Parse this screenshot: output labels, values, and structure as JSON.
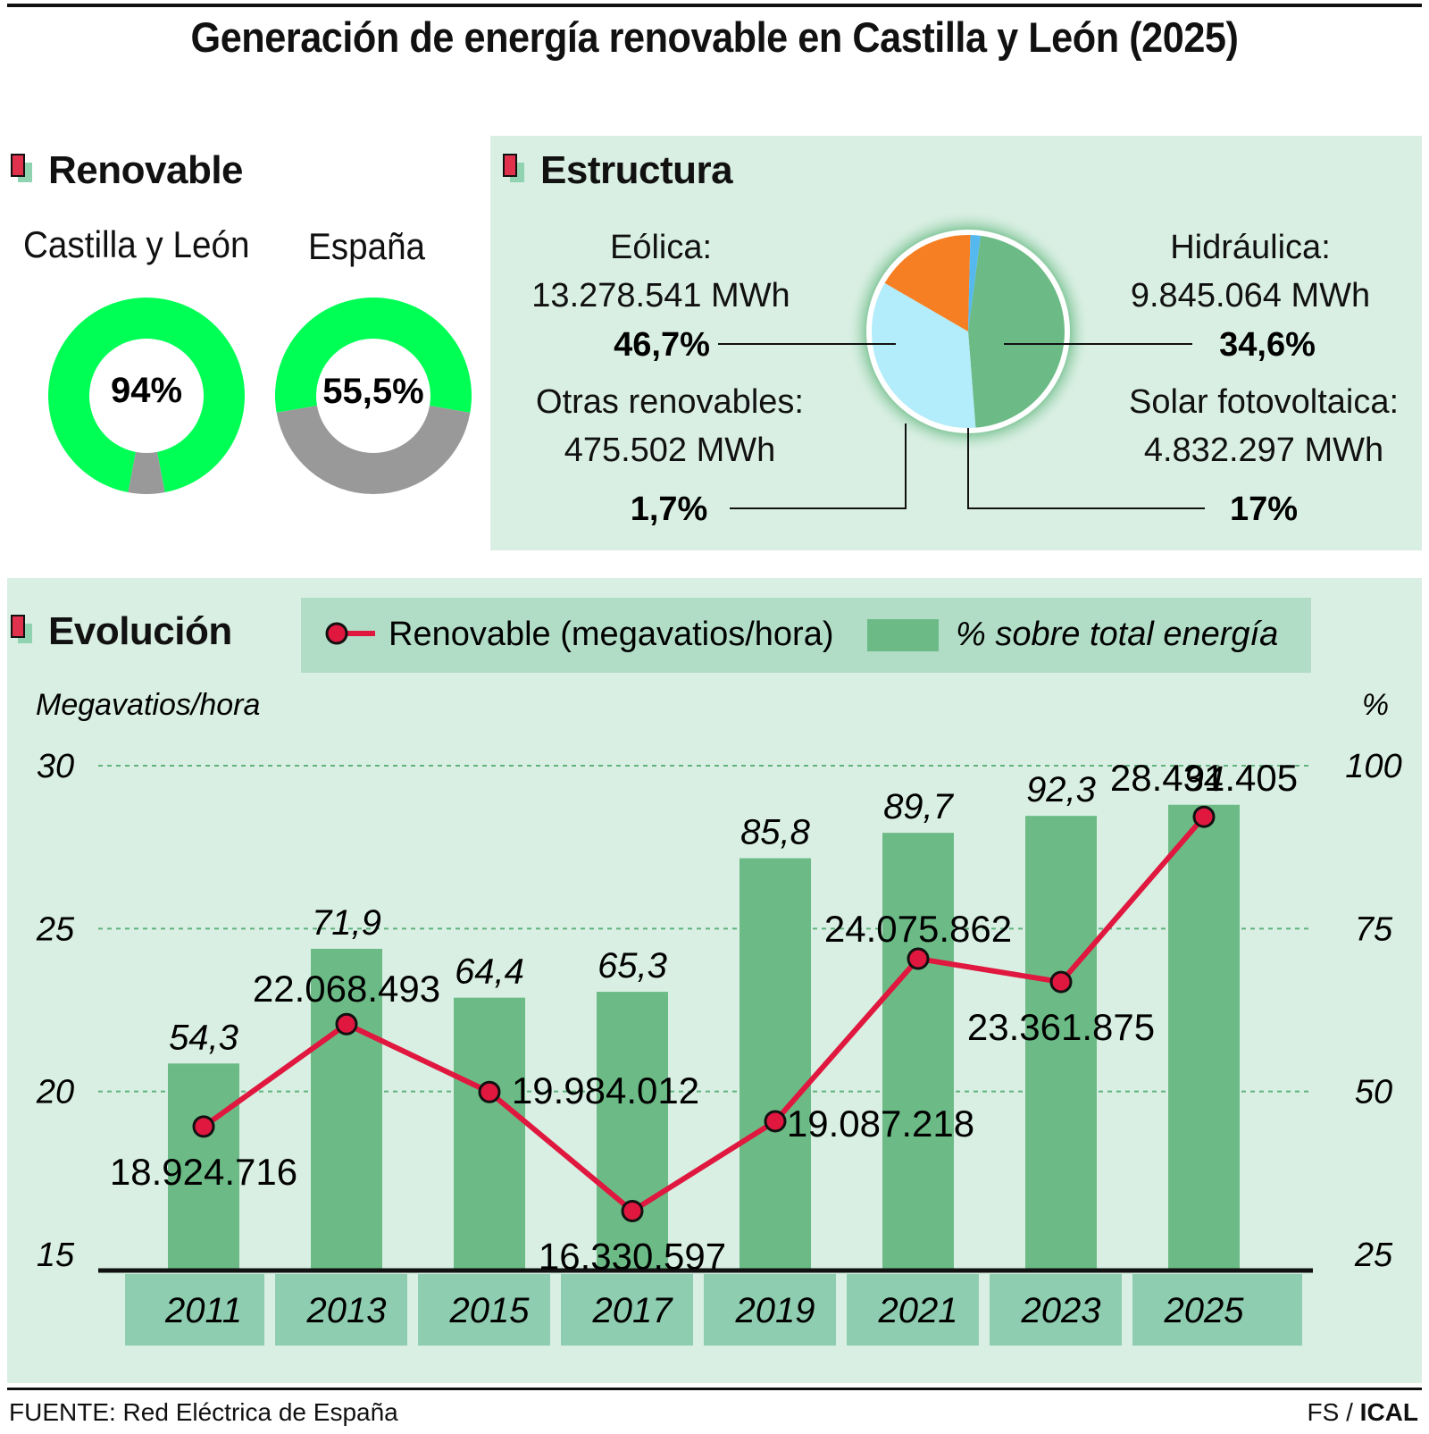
{
  "title": "Generación de energía renovable en Castilla y León (2025)",
  "renovable": {
    "heading": "Renovable",
    "donuts": [
      {
        "label": "Castilla y León",
        "value_text": "94%",
        "percent": 94
      },
      {
        "label": "España",
        "value_text": "55,5%",
        "percent": 55.5
      }
    ],
    "colors": {
      "renewable": "#00ff55",
      "rest": "#999999"
    }
  },
  "estructura": {
    "heading": "Estructura",
    "segments": [
      {
        "name": "Eólica:",
        "mwh": "13.278.541 MWh",
        "pct_text": "46,7%",
        "percent": 46.7,
        "color": "#6cbb86"
      },
      {
        "name": "Hidráulica:",
        "mwh": "9.845.064 MWh",
        "pct_text": "34,6%",
        "percent": 34.6,
        "color": "#b3ecfa"
      },
      {
        "name": "Solar fotovoltaica:",
        "mwh": "4.832.297 MWh",
        "pct_text": "17%",
        "percent": 17,
        "color": "#f57f22"
      },
      {
        "name": "Otras renovables:",
        "mwh": "475.502 MWh",
        "pct_text": "1,7%",
        "percent": 1.7,
        "color": "#55b8ef"
      }
    ]
  },
  "evolucion": {
    "heading": "Evolución",
    "legend": {
      "line_label": "Renovable (megavatios/hora)",
      "bar_label": "% sobre total energía"
    },
    "left_axis_label": "Megavatios/hora",
    "right_axis_label": "%"
  },
  "chart_data": {
    "type": "bar",
    "categories": [
      "2011",
      "2013",
      "2015",
      "2017",
      "2019",
      "2021",
      "2023",
      "2025"
    ],
    "series": [
      {
        "name": "% sobre total energía",
        "type": "bar",
        "axis": "right",
        "values": [
          54.3,
          71.9,
          64.4,
          65.3,
          85.8,
          89.7,
          92.3,
          94
        ],
        "labels": [
          "54,3",
          "71,9",
          "64,4",
          "65,3",
          "85,8",
          "89,7",
          "92,3",
          "94"
        ],
        "color": "#6cbb86"
      },
      {
        "name": "Renovable (megavatios/hora)",
        "type": "line",
        "axis": "left",
        "values": [
          18924716,
          22068493,
          19984012,
          16330597,
          19087218,
          24075862,
          23361875,
          28431405
        ],
        "labels": [
          "18.924.716",
          "22.068.493",
          "19.984.012",
          "16.330.597",
          "19.087.218",
          "24.075.862",
          "23.361.875",
          "28.431.405"
        ],
        "color": "#e0173f"
      }
    ],
    "ylabel": "Megavatios/hora",
    "y2label": "%",
    "ylim": [
      15,
      30
    ],
    "y2lim": [
      25,
      100
    ],
    "yticks": [
      "15",
      "20",
      "25",
      "30"
    ],
    "y2ticks": [
      "25",
      "50",
      "75",
      "100"
    ],
    "grid": true
  },
  "footer": {
    "source": "FUENTE: Red Eléctrica de España",
    "credit_prefix": "FS / ",
    "credit_bold": "ICAL"
  }
}
